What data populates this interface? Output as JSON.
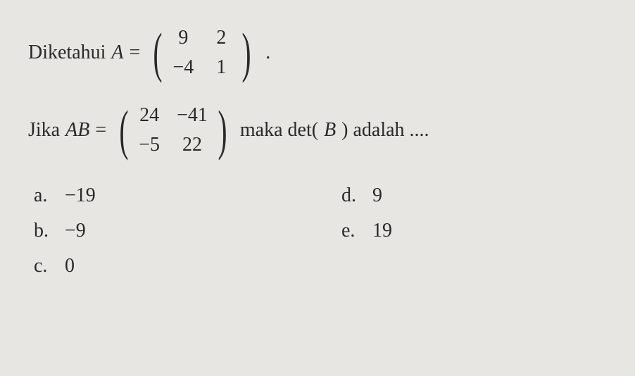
{
  "style": {
    "background_color": "#e8e6e2",
    "text_color": "#2a2a2a",
    "font_family": "Georgia, Times New Roman, serif",
    "base_font_size": 28,
    "paren_font_size": 78,
    "matrix_cell_gap_row": 10,
    "matrix_cell_gap_col": 24,
    "line_gap": 20,
    "option_row_gap": 18,
    "option_col_gap": 60
  },
  "line1": {
    "text1": "Diketahui ",
    "varA": "A",
    "equals": " = ",
    "period": "."
  },
  "matrixA": {
    "rows": 2,
    "cols": 2,
    "cells": [
      "9",
      "2",
      "−4",
      "1"
    ]
  },
  "line2": {
    "text1": "Jika ",
    "varAB": "AB",
    "equals": " = ",
    "text2": " maka det(",
    "varB": "B",
    "text3": ") adalah ...."
  },
  "matrixAB": {
    "rows": 2,
    "cols": 2,
    "cells": [
      "24",
      "−41",
      "−5",
      "22"
    ]
  },
  "options": {
    "a": {
      "label": "a.",
      "value": "−19"
    },
    "d": {
      "label": "d.",
      "value": "9"
    },
    "b": {
      "label": "b.",
      "value": "−9"
    },
    "e": {
      "label": "e.",
      "value": "19"
    },
    "c": {
      "label": "c.",
      "value": "0"
    }
  }
}
